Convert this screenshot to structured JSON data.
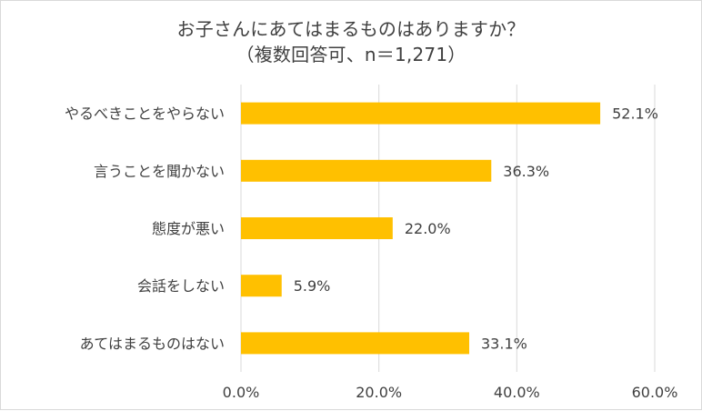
{
  "chart_data": {
    "type": "bar",
    "orientation": "horizontal",
    "title": "お子さんにあてはまるものはありますか？",
    "subtitle": "（複数回答可、n＝1,271）",
    "categories": [
      "やるべきことをやらない",
      "言うことを聞かない",
      "態度が悪い",
      "会話をしない",
      "あてはまるものはない"
    ],
    "values": [
      52.1,
      36.3,
      22.0,
      5.9,
      33.1
    ],
    "value_labels": [
      "52.1%",
      "36.3%",
      "22.0%",
      "5.9%",
      "33.1%"
    ],
    "xlim": [
      0,
      60
    ],
    "xticks": [
      0,
      20,
      40,
      60
    ],
    "xtick_labels": [
      "0.0%",
      "20.0%",
      "40.0%",
      "60.0%"
    ],
    "grid": true,
    "bar_color": "#FFC000",
    "grid_color": "#D9D9D9",
    "text_color": "#404040"
  }
}
